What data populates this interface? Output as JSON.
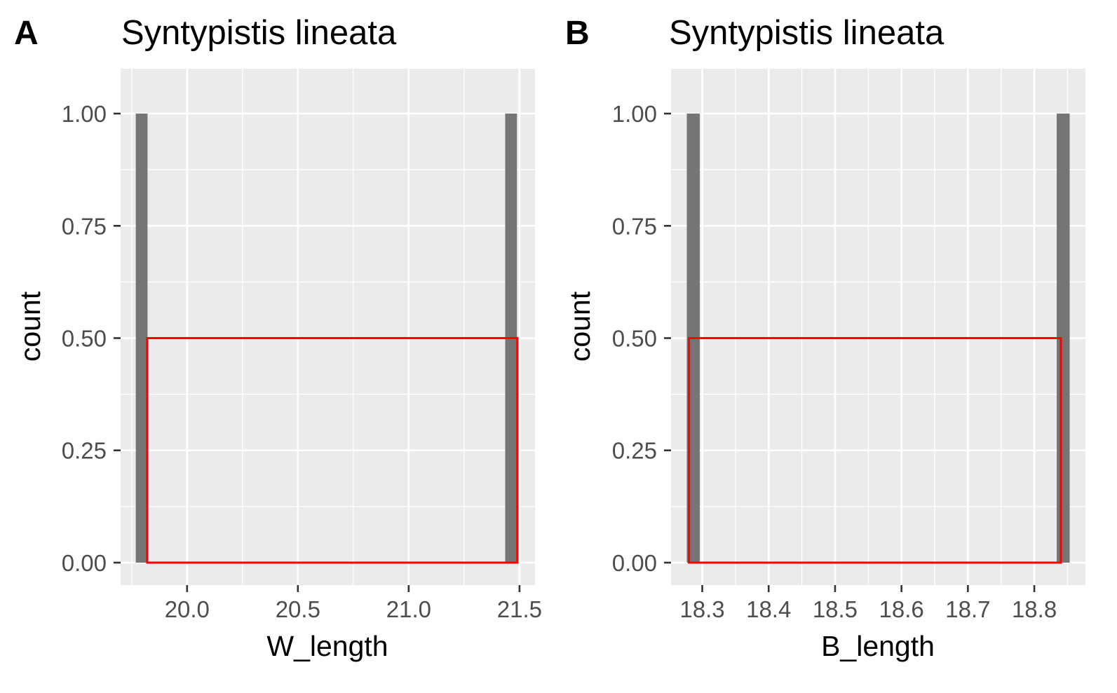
{
  "colors": {
    "panel_background": "#ebebeb",
    "grid_line": "#ffffff",
    "bar_fill": "#757575",
    "highlight_box": "#ff0000",
    "tick_text": "#4d4d4d",
    "tick_mark": "#333333",
    "text": "#000000"
  },
  "chart_data": [
    {
      "type": "bar",
      "panel_tag": "A",
      "title": "Syntypistis lineata",
      "xlabel": "W_length",
      "ylabel": "count",
      "xlim": [
        19.7,
        21.57
      ],
      "ylim": [
        -0.05,
        1.1
      ],
      "x_ticks": [
        20.0,
        20.5,
        21.0,
        21.5
      ],
      "x_tick_labels": [
        "20.0",
        "20.5",
        "21.0",
        "21.5"
      ],
      "y_ticks": [
        0,
        0.25,
        0.5,
        0.75,
        1.0
      ],
      "y_tick_labels": [
        "0.00",
        "0.25",
        "0.50",
        "0.75",
        "1.00"
      ],
      "bar_width": 0.053,
      "bars": [
        {
          "x": 19.795,
          "count": 1
        },
        {
          "x": 21.462,
          "count": 1
        }
      ],
      "highlight_box": {
        "x0": 19.82,
        "x1": 21.49,
        "y0": 0,
        "y1": 0.5
      },
      "grid": true
    },
    {
      "type": "bar",
      "panel_tag": "B",
      "title": "Syntypistis lineata",
      "xlabel": "B_length",
      "ylabel": "count",
      "xlim": [
        18.253,
        18.877
      ],
      "ylim": [
        -0.05,
        1.1
      ],
      "x_ticks": [
        18.3,
        18.4,
        18.5,
        18.6,
        18.7,
        18.8
      ],
      "x_tick_labels": [
        "18.3",
        "18.4",
        "18.5",
        "18.6",
        "18.7",
        "18.8"
      ],
      "y_ticks": [
        0,
        0.25,
        0.5,
        0.75,
        1.0
      ],
      "y_tick_labels": [
        "0.00",
        "0.25",
        "0.50",
        "0.75",
        "1.00"
      ],
      "bar_width": 0.0195,
      "bars": [
        {
          "x": 18.2865,
          "count": 1
        },
        {
          "x": 18.8435,
          "count": 1
        }
      ],
      "highlight_box": {
        "x0": 18.28,
        "x1": 18.84,
        "y0": 0,
        "y1": 0.5
      },
      "grid": true
    }
  ]
}
